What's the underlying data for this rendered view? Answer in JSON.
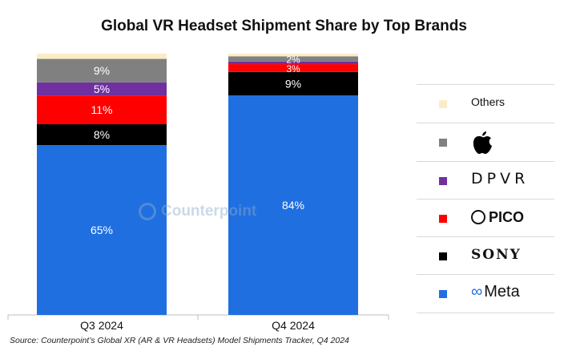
{
  "chart_data": {
    "type": "bar",
    "stacked": true,
    "title": "Global VR Headset Shipment Share by Top Brands",
    "categories": [
      "Q3 2024",
      "Q4 2024"
    ],
    "series": [
      {
        "name": "Meta",
        "color": "#1f6fe0",
        "values": [
          65,
          84
        ],
        "labels": [
          "65%",
          "84%"
        ]
      },
      {
        "name": "SONY",
        "color": "#000000",
        "values": [
          8,
          9
        ],
        "labels": [
          "8%",
          "9%"
        ]
      },
      {
        "name": "PICO",
        "color": "#ff0000",
        "values": [
          11,
          3
        ],
        "labels": [
          "11%",
          "3%"
        ]
      },
      {
        "name": "DPVR",
        "color": "#7030a0",
        "values": [
          5,
          1
        ],
        "labels": [
          "5%",
          ""
        ]
      },
      {
        "name": "Apple",
        "color": "#808080",
        "values": [
          9,
          2
        ],
        "labels": [
          "9%",
          "2%"
        ]
      },
      {
        "name": "Others",
        "color": "#fbecc8",
        "values": [
          2,
          1
        ],
        "labels": [
          "",
          ""
        ]
      }
    ],
    "ylim": [
      0,
      100
    ],
    "legend_position": "right",
    "grid": false
  },
  "legend": [
    {
      "key": "others",
      "text": "Others",
      "color": "#fbecc8"
    },
    {
      "key": "apple",
      "text": "",
      "icon": "apple-logo-icon",
      "color": "#808080"
    },
    {
      "key": "dpvr",
      "text": "DPVR",
      "color": "#7030a0"
    },
    {
      "key": "pico",
      "text": "PICO",
      "icon": "pico-logo-icon",
      "color": "#ff0000"
    },
    {
      "key": "sony",
      "text": "SONY",
      "color": "#000000"
    },
    {
      "key": "meta",
      "text": "Meta",
      "icon": "meta-infinity-icon",
      "color": "#1f6fe0"
    }
  ],
  "watermark": "Counterpoint",
  "source": "Source: Counterpoint’s Global XR (AR & VR Headsets) Model Shipments Tracker, Q4 2024"
}
